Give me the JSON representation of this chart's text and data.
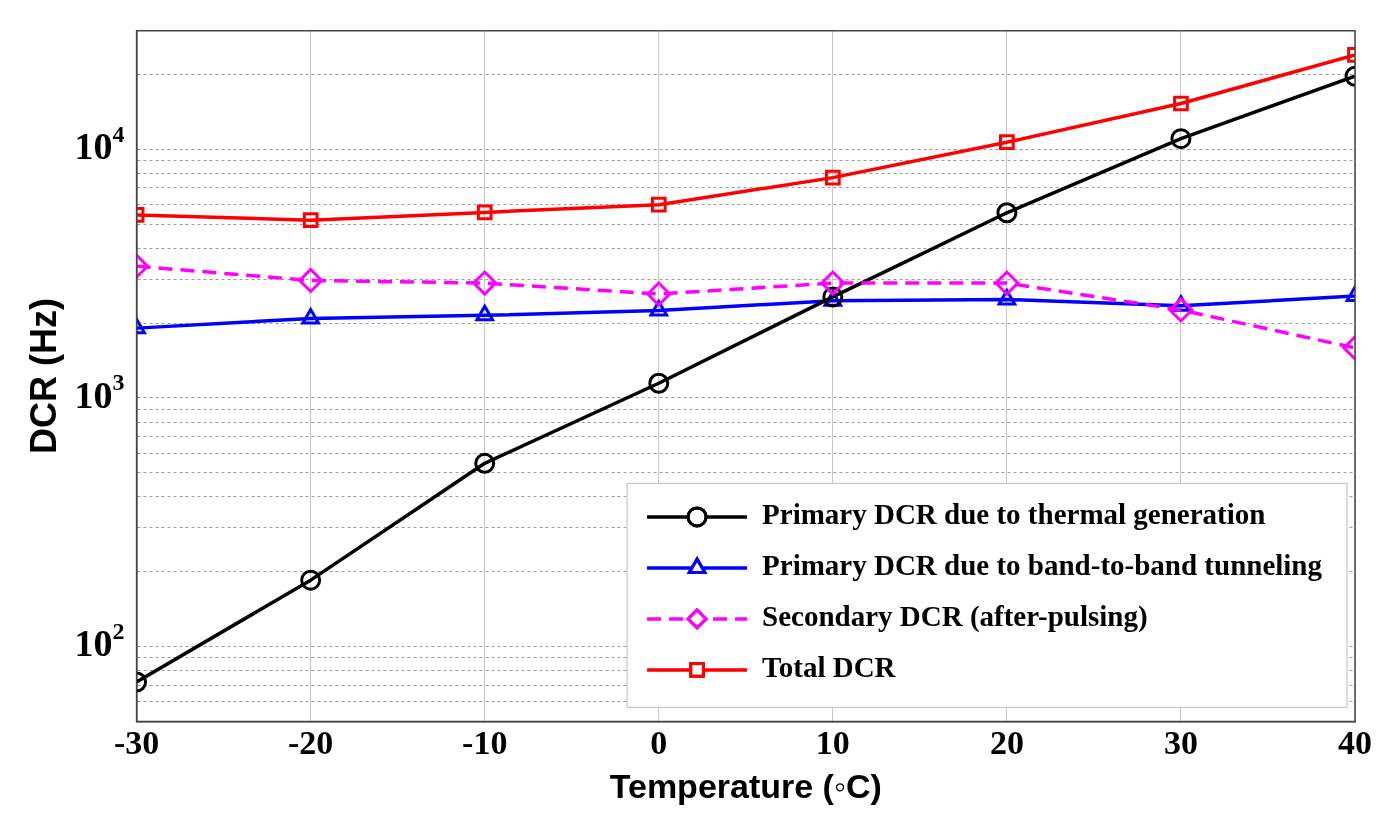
{
  "chart_data": {
    "type": "line",
    "xlabel": "Temperature (◦C)",
    "ylabel": "DCR (Hz)",
    "x": [
      -30,
      -20,
      -10,
      0,
      10,
      20,
      30,
      40
    ],
    "xlim": [
      -30,
      40
    ],
    "xticks": [
      -30,
      -20,
      -10,
      0,
      10,
      20,
      30,
      40
    ],
    "log": "y",
    "ylim": [
      50,
      30000
    ],
    "yticks": [
      {
        "value": 60,
        "label": null
      },
      {
        "value": 70,
        "label": null
      },
      {
        "value": 80,
        "label": null
      },
      {
        "value": 90,
        "label": null
      },
      {
        "value": 100,
        "label": "10$^{2}$"
      },
      {
        "value": 200,
        "label": null
      },
      {
        "value": 300,
        "label": null
      },
      {
        "value": 400,
        "label": null
      },
      {
        "value": 500,
        "label": null
      },
      {
        "value": 600,
        "label": null
      },
      {
        "value": 700,
        "label": null
      },
      {
        "value": 800,
        "label": null
      },
      {
        "value": 900,
        "label": null
      },
      {
        "value": 1000,
        "label": "10$^{3}$"
      },
      {
        "value": 2000,
        "label": null
      },
      {
        "value": 3000,
        "label": null
      },
      {
        "value": 4000,
        "label": null
      },
      {
        "value": 5000,
        "label": null
      },
      {
        "value": 6000,
        "label": null
      },
      {
        "value": 7000,
        "label": null
      },
      {
        "value": 8000,
        "label": null
      },
      {
        "value": 9000,
        "label": null
      },
      {
        "value": 10000,
        "label": "10$^{4}$"
      },
      {
        "value": 20000,
        "label": null
      }
    ],
    "grid": true,
    "legend": "bottom right",
    "series": [
      {
        "name": "Primary DCR due to thermal generation",
        "color": "#000000",
        "marker": "circle",
        "line_style": "solid",
        "values": [
          72,
          185,
          546,
          1146,
          2550,
          5560,
          11050,
          19700
        ]
      },
      {
        "name": "Primary DCR due to band-to-band tunneling",
        "color": "#0000ff",
        "marker": "triangle",
        "line_style": "solid",
        "values": [
          1910,
          2090,
          2150,
          2250,
          2460,
          2490,
          2350,
          2570
        ]
      },
      {
        "name": "Secondary DCR (after-pulsing)",
        "color": "#ff00ff",
        "marker": "diamond",
        "line_style": "dashed",
        "values": [
          3390,
          2970,
          2900,
          2620,
          2900,
          2900,
          2260,
          1590
        ]
      },
      {
        "name": "Total DCR",
        "color": "#ff0000",
        "marker": "square",
        "line_style": "solid",
        "values": [
          5450,
          5190,
          5580,
          5990,
          7700,
          10690,
          15300,
          24000
        ]
      }
    ]
  }
}
